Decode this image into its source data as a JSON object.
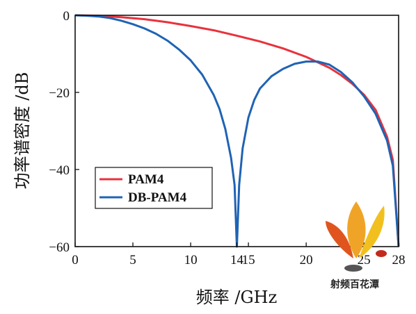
{
  "chart_data": {
    "type": "line",
    "title": "",
    "xlabel": "频率 /GHz",
    "ylabel": "功率谱密度 /dB",
    "xlim": [
      0,
      28
    ],
    "ylim": [
      -60,
      0
    ],
    "xticks": [
      0,
      5,
      10,
      14,
      15,
      20,
      25,
      28
    ],
    "yticks": [
      0,
      -20,
      -40,
      -60
    ],
    "grid": false,
    "legend_position": "lower-left",
    "series": [
      {
        "name": "PAM4",
        "color": "#e8323c",
        "x": [
          0,
          2,
          4,
          6,
          8,
          10,
          12,
          14,
          16,
          18,
          20,
          22,
          23,
          24,
          25,
          26,
          27,
          27.5,
          28
        ],
        "y": [
          0,
          -0.1,
          -0.5,
          -1.0,
          -1.8,
          -2.8,
          -3.9,
          -5.3,
          -6.8,
          -8.6,
          -10.8,
          -13.6,
          -15.5,
          -17.8,
          -20.6,
          -24.5,
          -31.5,
          -37.5,
          -60
        ]
      },
      {
        "name": "DB-PAM4",
        "color": "#1f63b4",
        "x": [
          0,
          1,
          2,
          3,
          4,
          5,
          6,
          7,
          8,
          9,
          10,
          11,
          12,
          12.5,
          13,
          13.5,
          13.8,
          14,
          14.2,
          14.5,
          15,
          15.5,
          16,
          17,
          18,
          19,
          20,
          21,
          22,
          23,
          24,
          25,
          26,
          27,
          27.5,
          28
        ],
        "y": [
          0,
          -0.1,
          -0.3,
          -0.7,
          -1.4,
          -2.3,
          -3.4,
          -4.8,
          -6.6,
          -8.9,
          -11.7,
          -15.4,
          -20.7,
          -24.3,
          -29.5,
          -37.0,
          -44.0,
          -60,
          -44.0,
          -34.5,
          -26.5,
          -22.0,
          -19.0,
          -15.8,
          -13.9,
          -12.6,
          -12.0,
          -12.0,
          -12.8,
          -14.7,
          -17.4,
          -21.0,
          -25.5,
          -32.5,
          -39.0,
          -60
        ]
      }
    ]
  },
  "watermark": {
    "text": "射频百花潭"
  }
}
